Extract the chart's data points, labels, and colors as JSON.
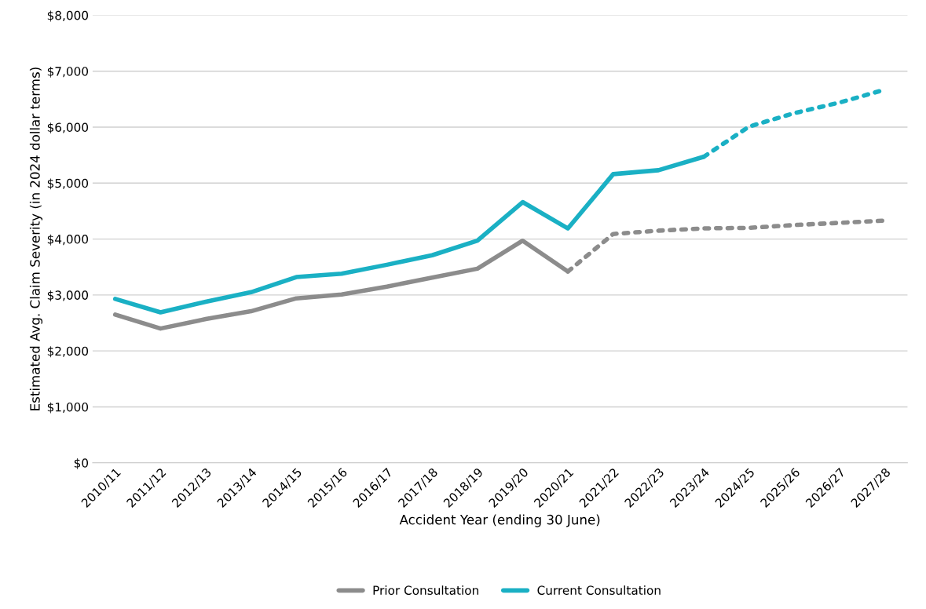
{
  "chart_data": {
    "type": "line",
    "xlabel": "Accident Year (ending 30 June)",
    "ylabel": "Estimated Avg. Claim Severity (in 2024 dollar terms)",
    "categories": [
      "2010/11",
      "2011/12",
      "2012/13",
      "2013/14",
      "2014/15",
      "2015/16",
      "2016/17",
      "2017/18",
      "2018/19",
      "2019/20",
      "2020/21",
      "2021/22",
      "2022/23",
      "2023/24",
      "2024/25",
      "2025/26",
      "2026/27",
      "2027/28"
    ],
    "series": [
      {
        "name": "Prior Consultation",
        "color": "#8c8c8c",
        "line_style": "solid",
        "values": [
          2650,
          2400,
          2570,
          2710,
          2940,
          3010,
          3150,
          3310,
          3470,
          3970,
          3420,
          null,
          null,
          null,
          null,
          null,
          null,
          null
        ]
      },
      {
        "color": "#8c8c8c",
        "line_style": "dotted",
        "values": [
          null,
          null,
          null,
          null,
          null,
          null,
          null,
          null,
          null,
          null,
          3420,
          4090,
          4150,
          4190,
          4200,
          4250,
          4290,
          4330
        ]
      },
      {
        "name": "Current Consultation",
        "color": "#1ab0c4",
        "line_style": "solid",
        "values": [
          2930,
          2690,
          2880,
          3050,
          3320,
          3380,
          3540,
          3710,
          3970,
          4660,
          4190,
          5160,
          5230,
          5470,
          null,
          null,
          null,
          null
        ]
      },
      {
        "color": "#1ab0c4",
        "line_style": "dotted",
        "values": [
          null,
          null,
          null,
          null,
          null,
          null,
          null,
          null,
          null,
          null,
          null,
          null,
          null,
          5470,
          6010,
          6250,
          6440,
          6670
        ]
      }
    ],
    "ylim": [
      0,
      8000
    ],
    "yticks": [
      {
        "value": 0,
        "label": "$0"
      },
      {
        "value": 1000,
        "label": "$1,000"
      },
      {
        "value": 2000,
        "label": "$2,000"
      },
      {
        "value": 3000,
        "label": "$3,000"
      },
      {
        "value": 4000,
        "label": "$4,000"
      },
      {
        "value": 5000,
        "label": "$5,000"
      },
      {
        "value": 6000,
        "label": "$6,000"
      },
      {
        "value": 7000,
        "label": "$7,000"
      },
      {
        "value": 8000,
        "label": "$8,000"
      }
    ],
    "grid": "y",
    "legend": "bottom",
    "marker": "none"
  }
}
